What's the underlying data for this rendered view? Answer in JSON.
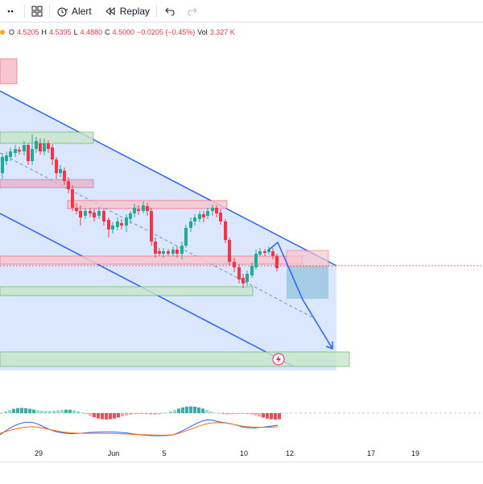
{
  "toolbar": {
    "items": [
      {
        "name": "more-icon",
        "label": ""
      },
      {
        "name": "layouts-icon",
        "label": ""
      },
      {
        "name": "alert-button",
        "label": "Alert"
      },
      {
        "name": "replay-button",
        "label": "Replay"
      }
    ],
    "alert_label": "Alert",
    "replay_label": "Replay"
  },
  "legend": {
    "open_label": "O",
    "open": "4.5205",
    "high_label": "H",
    "high": "4.5395",
    "low_label": "L",
    "low": "4.4880",
    "close_label": "C",
    "close": "4.5000",
    "change": "−0.0205 (−0.45%)",
    "vol_label": "Vol",
    "volume": "3.327 K"
  },
  "x_axis": {
    "labels": [
      "29",
      "Jun",
      "5",
      "10",
      "12",
      "17",
      "19"
    ]
  },
  "colors": {
    "up": "#22ab94",
    "down": "#f23645",
    "channel_fill": "#bdd4ff",
    "channel_line": "#2962ff",
    "supply_zone": "#f7c6ce",
    "demand_zone": "#c8e6c9",
    "target_box": "#9ec9e2",
    "macd_line": "#2962ff",
    "signal_line": "#ff6d00"
  },
  "chart_data": {
    "type": "candlestick",
    "annotations": [
      "descending channel",
      "supply zones",
      "demand zones",
      "projected downward arrow",
      "target box"
    ],
    "indicator": "MACD"
  }
}
